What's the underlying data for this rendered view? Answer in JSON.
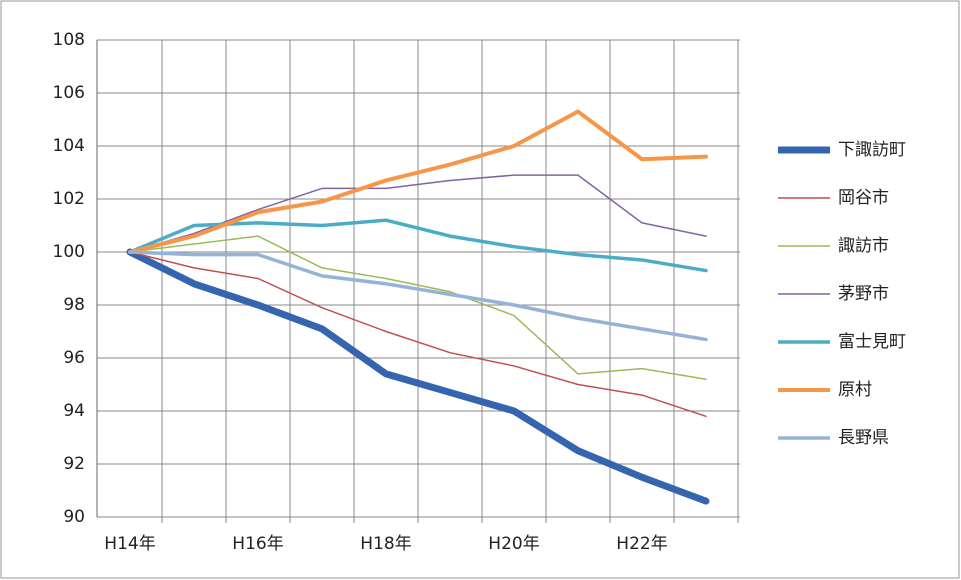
{
  "chart_data": {
    "type": "line",
    "categories": [
      "H14年",
      null,
      "H16年",
      null,
      "H18年",
      null,
      "H20年",
      null,
      "H22年",
      null
    ],
    "series": [
      {
        "name": "下諏訪町",
        "color": "#3565ae",
        "width": 7,
        "values": [
          100,
          98.8,
          98.0,
          97.1,
          95.4,
          94.7,
          94.0,
          92.5,
          91.5,
          90.6
        ]
      },
      {
        "name": "岡谷市",
        "color": "#c0504d",
        "width": 1.5,
        "values": [
          100,
          99.4,
          99.0,
          97.9,
          97.0,
          96.2,
          95.7,
          95.0,
          94.6,
          93.8
        ]
      },
      {
        "name": "諏訪市",
        "color": "#9bbb59",
        "width": 1.5,
        "values": [
          100,
          100.3,
          100.6,
          99.4,
          99.0,
          98.5,
          97.6,
          95.4,
          95.6,
          95.2
        ]
      },
      {
        "name": "茅野市",
        "color": "#8064a2",
        "width": 1.5,
        "values": [
          100,
          100.7,
          101.6,
          102.4,
          102.4,
          102.7,
          102.9,
          102.9,
          101.1,
          100.6
        ]
      },
      {
        "name": "富士見町",
        "color": "#4bacc6",
        "width": 3.5,
        "values": [
          100,
          101.0,
          101.1,
          101.0,
          101.2,
          100.6,
          100.2,
          99.9,
          99.7,
          99.3
        ]
      },
      {
        "name": "原村",
        "color": "#f79646",
        "width": 4,
        "values": [
          100,
          100.6,
          101.5,
          101.9,
          102.7,
          103.3,
          104.0,
          105.3,
          103.5,
          103.6
        ]
      },
      {
        "name": "長野県",
        "color": "#95b3d7",
        "width": 3.5,
        "values": [
          100,
          99.9,
          99.9,
          99.1,
          98.8,
          98.4,
          98.0,
          97.5,
          97.1,
          96.7
        ]
      }
    ],
    "ylim": [
      90,
      108
    ],
    "yticks": [
      90,
      92,
      94,
      96,
      98,
      100,
      102,
      104,
      106,
      108
    ],
    "grid": true,
    "legend": "right"
  }
}
